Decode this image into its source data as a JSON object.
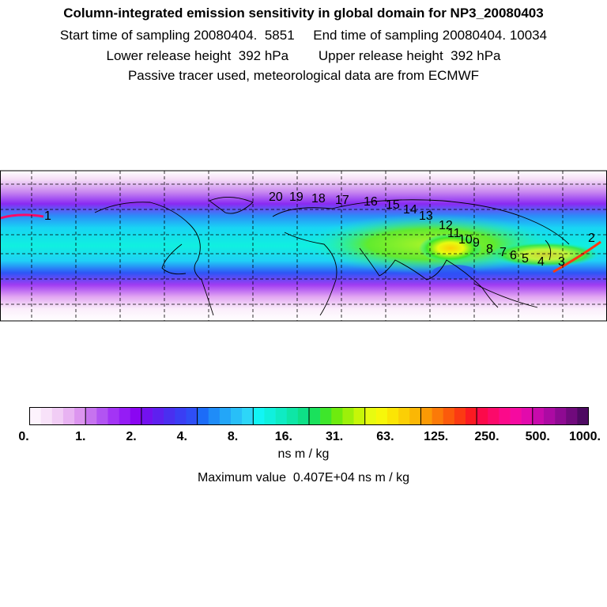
{
  "header": {
    "title": "Column-integrated emission sensitivity in global domain for NP3_20080403",
    "line2": "Start time of sampling 20080404.  5851     End time of sampling 20080404. 10034",
    "line3": "Lower release height  392 hPa        Upper release height  392 hPa",
    "line4": "Passive tracer used, meteorological data are from ECMWF"
  },
  "map": {
    "projection": "equirectangular global domain",
    "grid": "dashed lat/lon lines",
    "trajectory_labels": [
      "20",
      "19",
      "18",
      "17",
      "16",
      "15",
      "14",
      "13",
      "12",
      "11",
      "10",
      "9",
      "8",
      "7",
      "6",
      "5",
      "4",
      "3",
      "2",
      "1"
    ]
  },
  "colorbar": {
    "tick_labels": [
      "0.",
      "1.",
      "2.",
      "4.",
      "8.",
      "16.",
      "31.",
      "63.",
      "125.",
      "250.",
      "500.",
      "1000."
    ],
    "colors": [
      "#fdf3fd",
      "#f8e2f9",
      "#f1cdf5",
      "#e8b3f2",
      "#dc95ef",
      "#c673ef",
      "#b254f2",
      "#a334f5",
      "#951cf5",
      "#8a06f2",
      "#7311ef",
      "#5e20ef",
      "#4a2ff0",
      "#3a3ef4",
      "#2e4ef6",
      "#1c6cf8",
      "#1f8cf8",
      "#23a6f8",
      "#28bff8",
      "#2dd6f8",
      "#12f5f5",
      "#10f0dd",
      "#0febc3",
      "#0ee6a6",
      "#0ee087",
      "#1ae15c",
      "#3ee62b",
      "#6eeb0e",
      "#9df00a",
      "#c7f608",
      "#e8fb10",
      "#f7f70a",
      "#fbe505",
      "#fbcf05",
      "#fbb705",
      "#fb9a05",
      "#fb7a08",
      "#fb5a0b",
      "#fb3a12",
      "#fb1a22",
      "#fb0a4a",
      "#fb0a6a",
      "#fb0a8a",
      "#f50aa0",
      "#e20aac",
      "#c80aac",
      "#ac0aa3",
      "#8e0a92",
      "#700a7c",
      "#4e0a62"
    ]
  },
  "units": "ns m / kg",
  "max_value_text": "Maximum value  0.407E+04 ns m / kg"
}
